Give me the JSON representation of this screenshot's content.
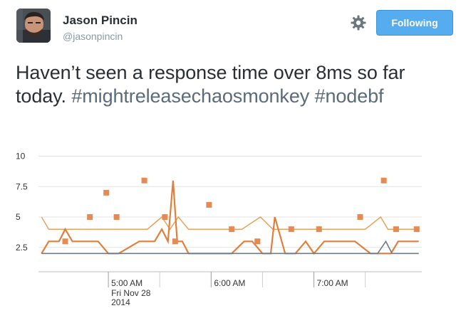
{
  "user": {
    "display_name": "Jason Pincin",
    "screen_name": "@jasonpincin"
  },
  "actions": {
    "follow_label": "Following",
    "settings_icon": "gear-icon"
  },
  "tweet": {
    "text": "Haven’t seen a response time over 8ms so far today.",
    "hashtags": [
      "#mightreleasechaosmonkey",
      "#nodebf"
    ]
  },
  "colors": {
    "follow_button": "#55acee",
    "name_text": "#292f33",
    "handle_text": "#8899a6",
    "hashtag": "#5b6b7a",
    "series_mean": "#e8a25c",
    "series_max": "#e07f3b",
    "series_min": "#6f7a87",
    "series_points": "#e58a55"
  },
  "chart_data": {
    "type": "line",
    "y_ticks": [
      "10",
      "7.5",
      "5",
      "2.5"
    ],
    "y_tick_values": [
      10,
      7.5,
      5,
      2.5
    ],
    "ylim": [
      0.5,
      10.5
    ],
    "x_tick_labels": [
      "5:00 AM",
      "6:00 AM",
      "7:00 AM"
    ],
    "x_tick_positions": [
      5,
      6,
      7
    ],
    "x_date_label": [
      "Fri Nov 28",
      "2014"
    ],
    "xlim": [
      4.32,
      8.05
    ],
    "grid": true,
    "series": [
      {
        "style": "line",
        "x": [
          4.35,
          4.42,
          4.58,
          4.72,
          4.85,
          4.98,
          5.1,
          5.25,
          5.38,
          5.52,
          5.6,
          5.68,
          5.78,
          5.85,
          6.0,
          6.15,
          6.3,
          6.48,
          6.6,
          6.72,
          6.85,
          6.98,
          7.1,
          7.22,
          7.35,
          7.5,
          7.65,
          7.72,
          7.8,
          7.92,
          8.02
        ],
        "y": [
          5,
          4,
          4,
          4,
          4,
          4,
          4,
          4,
          4,
          5,
          4,
          5,
          4,
          4,
          4,
          4,
          4,
          5,
          4,
          4,
          4,
          4,
          4,
          4,
          4,
          4,
          5,
          4,
          4,
          4,
          4
        ]
      },
      {
        "style": "line",
        "x": [
          4.35,
          4.42,
          4.52,
          4.58,
          4.65,
          4.75,
          4.9,
          5.0,
          5.1,
          5.3,
          5.45,
          5.52,
          5.58,
          5.63,
          5.67,
          5.72,
          5.78,
          5.88,
          6.05,
          6.2,
          6.32,
          6.4,
          6.5,
          6.58,
          6.62,
          6.72,
          6.82,
          6.92,
          7.0,
          7.1,
          7.2,
          7.4,
          7.55,
          7.65,
          7.75,
          7.82,
          7.92,
          8.02
        ],
        "y": [
          2,
          3,
          3,
          4,
          3,
          3,
          3,
          2,
          2,
          3,
          3,
          4,
          3,
          8,
          3,
          3,
          2,
          2,
          2,
          2,
          3,
          3,
          2,
          2,
          5,
          2,
          2,
          3,
          2,
          3,
          3,
          3,
          2,
          2,
          2,
          3,
          3,
          3
        ]
      },
      {
        "style": "line",
        "x": [
          4.35,
          7.62,
          7.7,
          7.76,
          8.02
        ],
        "y": [
          2,
          2,
          3,
          2,
          2
        ]
      },
      {
        "style": "markers",
        "x": [
          4.58,
          4.82,
          4.98,
          5.08,
          5.35,
          5.55,
          5.65,
          5.98,
          6.2,
          6.45,
          6.78,
          7.05,
          7.45,
          7.68,
          7.8,
          8.0
        ],
        "y": [
          3,
          5,
          7,
          5,
          8,
          5,
          3,
          6,
          4,
          3,
          4,
          4,
          5,
          8,
          4,
          4
        ]
      }
    ]
  }
}
